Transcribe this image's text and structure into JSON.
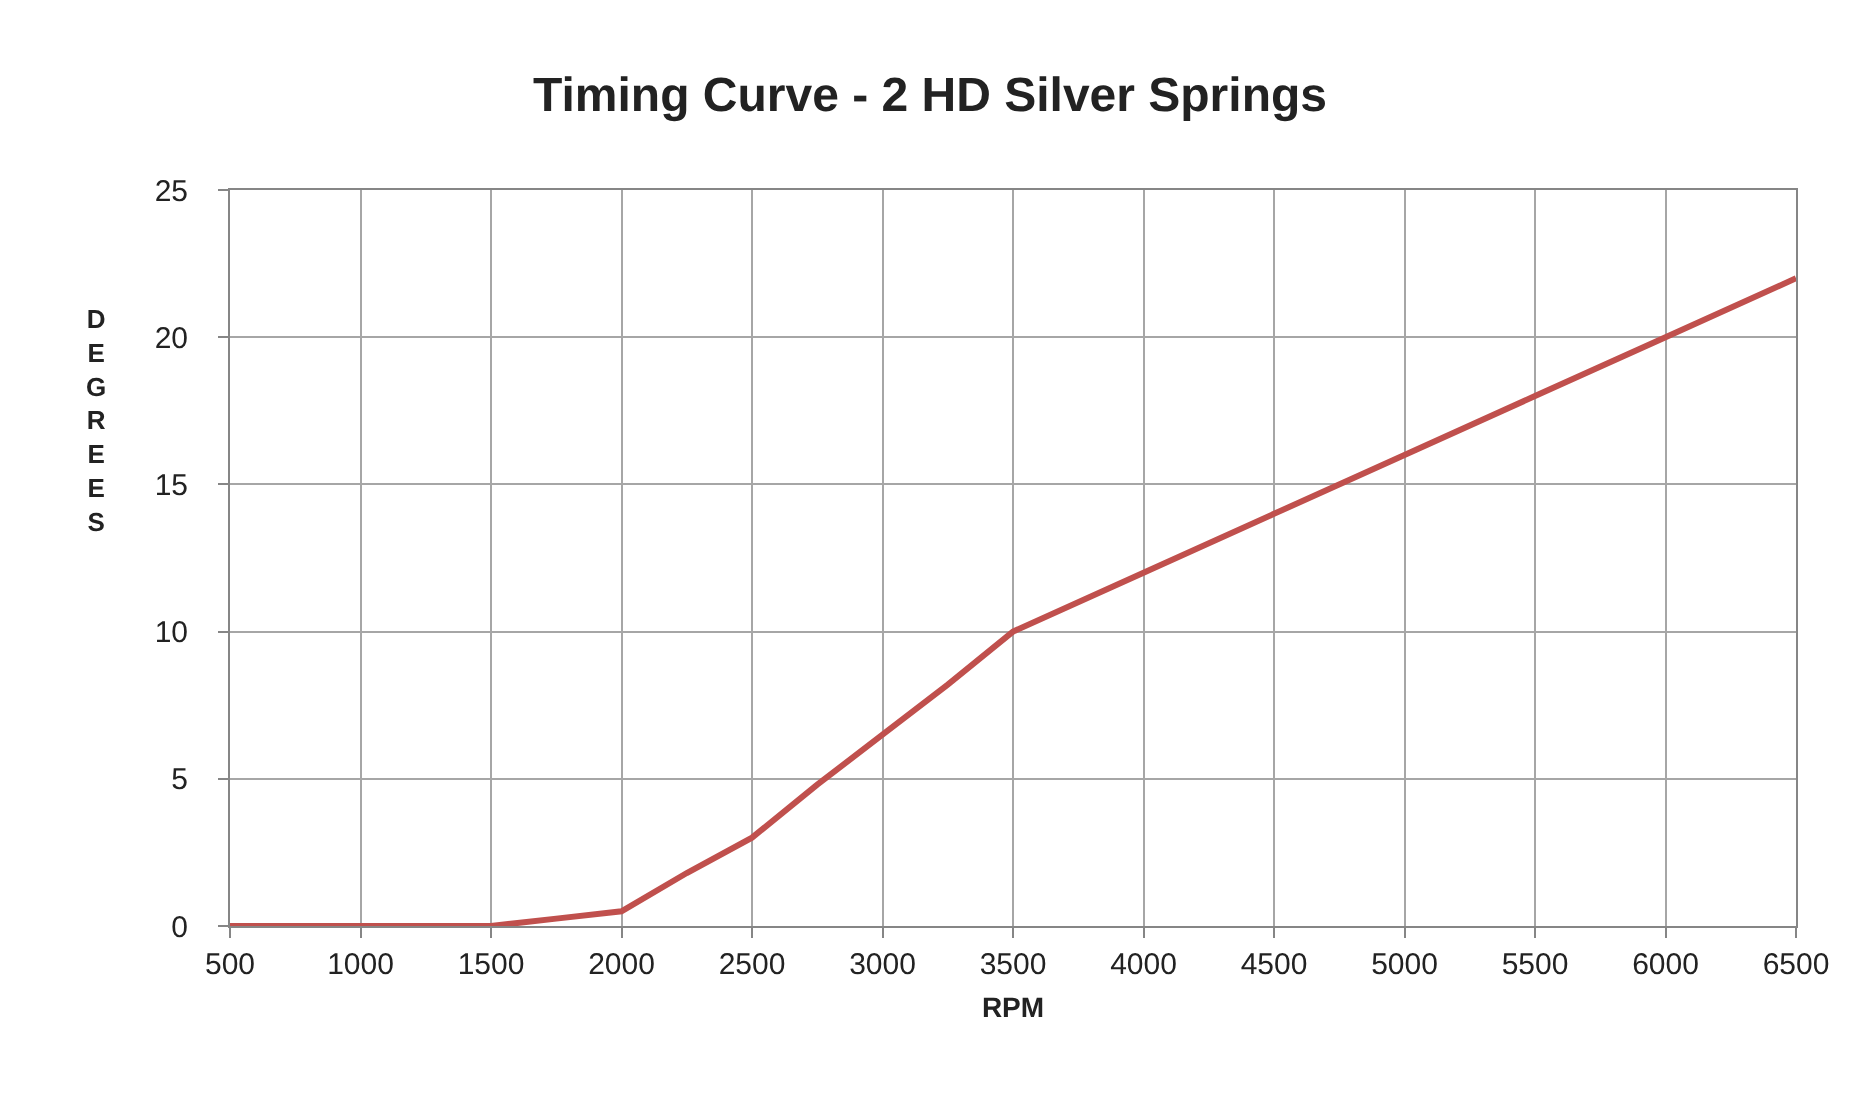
{
  "chart_data": {
    "type": "line",
    "title": "Timing Curve - 2 HD Silver Springs",
    "xlabel": "RPM",
    "ylabel": "DEGREES",
    "x": [
      500,
      1000,
      1500,
      1750,
      2000,
      2250,
      2500,
      2750,
      3000,
      3250,
      3500,
      4000,
      4500,
      5000,
      5500,
      6000,
      6500
    ],
    "series": [
      {
        "color": "#c0504d",
        "values": [
          0,
          0,
          0,
          0.25,
          0.5,
          1.8,
          3,
          4.8,
          6.5,
          8.2,
          10,
          12,
          14,
          16,
          18,
          20,
          22
        ]
      }
    ],
    "xlim": [
      500,
      6500
    ],
    "xticks": [
      500,
      1000,
      1500,
      2000,
      2500,
      3000,
      3500,
      4000,
      4500,
      5000,
      5500,
      6000,
      6500
    ],
    "ylim": [
      0,
      25
    ],
    "yticks": [
      0,
      5,
      10,
      15,
      20,
      25
    ],
    "grid": true,
    "marker": "none",
    "line_style": "solid"
  }
}
